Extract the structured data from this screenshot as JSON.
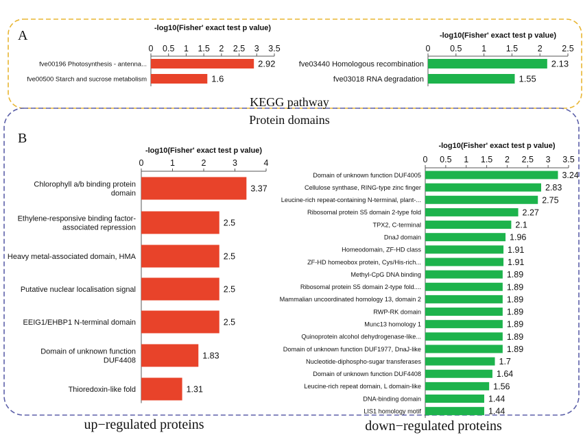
{
  "panel_a": {
    "letter": "A",
    "caption": "KEGG pathway",
    "border_color": "#E8B531"
  },
  "panel_b": {
    "letter": "B",
    "caption": "Protein domains",
    "border_color": "#5B5FA8"
  },
  "footer": {
    "left_caption": "up−regulated proteins",
    "right_caption": "down−regulated proteins"
  },
  "colors": {
    "up": "#E8432A",
    "down": "#1DB34C"
  },
  "chart_data": [
    {
      "id": "kegg-up",
      "type": "bar",
      "orientation": "horizontal",
      "title": "-log10(Fisher' exact test p value)",
      "xlim": [
        0,
        3.5
      ],
      "ticks": [
        "0",
        "0.5",
        "1",
        "1.5",
        "2",
        "2.5",
        "3",
        "3.5"
      ],
      "categories": [
        "fve00196 Photosynthesis - antenna...",
        "fve00500 Starch and sucrose metabolism"
      ],
      "values": [
        2.92,
        1.6
      ],
      "labels": [
        "2.92",
        "1.6"
      ]
    },
    {
      "id": "kegg-down",
      "type": "bar",
      "orientation": "horizontal",
      "title": "-log10(Fisher' exact test p value)",
      "xlim": [
        0,
        2.5
      ],
      "ticks": [
        "0",
        "0.5",
        "1",
        "1.5",
        "2",
        "2.5"
      ],
      "categories": [
        "fve03440 Homologous recombination",
        "fve03018 RNA degradation"
      ],
      "values": [
        2.13,
        1.55
      ],
      "labels": [
        "2.13",
        "1.55"
      ]
    },
    {
      "id": "domain-up",
      "type": "bar",
      "orientation": "horizontal",
      "title": "-log10(Fisher' exact test p value)",
      "xlim": [
        0,
        4
      ],
      "ticks": [
        "0",
        "1",
        "2",
        "3",
        "4"
      ],
      "categories": [
        [
          "Chlorophyll a/b binding protein",
          "domain"
        ],
        [
          "Ethylene-responsive binding factor-",
          "associated repression"
        ],
        [
          "Heavy metal-associated domain, HMA"
        ],
        [
          "Putative nuclear localisation signal"
        ],
        [
          "EEIG1/EHBP1 N-terminal domain"
        ],
        [
          "Domain of unknown function",
          "DUF4408"
        ],
        [
          "Thioredoxin-like fold"
        ]
      ],
      "values": [
        3.37,
        2.5,
        2.5,
        2.5,
        2.5,
        1.83,
        1.31
      ],
      "labels": [
        "3.37",
        "2.5",
        "2.5",
        "2.5",
        "2.5",
        "1.83",
        "1.31"
      ]
    },
    {
      "id": "domain-down",
      "type": "bar",
      "orientation": "horizontal",
      "title": "-log10(Fisher' exact test p value)",
      "xlim": [
        0,
        3.5
      ],
      "ticks": [
        "0",
        "0.5",
        "1",
        "1.5",
        "2",
        "2.5",
        "3",
        "3.5"
      ],
      "categories": [
        "Domain of unknown function DUF4005",
        "Cellulose synthase, RING-type zinc finger",
        "Leucine-rich repeat-containing N-terminal, plant-...",
        "Ribosomal protein S5 domain 2-type fold",
        "TPX2, C-terminal",
        "DnaJ domain",
        "Homeodomain, ZF-HD class",
        "ZF-HD homeobox protein, Cys/His-rich...",
        "Methyl-CpG DNA binding",
        "Ribosomal protein S5 domain 2-type fold....",
        "Mammalian uncoordinated homology 13, domain 2",
        "RWP-RK domain",
        "Munc13 homology 1",
        "Quinoprotein alcohol dehydrogenase-like...",
        "Domain of unknown function DUF1977, DnaJ-like",
        "Nucleotide-diphospho-sugar transferases",
        "Domain of unknown function DUF4408",
        "Leucine-rich repeat domain, L domain-like",
        "DNA-binding domain",
        "LIS1 homology motif"
      ],
      "values": [
        3.24,
        2.83,
        2.75,
        2.27,
        2.1,
        1.96,
        1.91,
        1.91,
        1.89,
        1.89,
        1.89,
        1.89,
        1.89,
        1.89,
        1.89,
        1.7,
        1.64,
        1.56,
        1.44,
        1.44
      ],
      "labels": [
        "3.24",
        "2.83",
        "2.75",
        "2.27",
        "2.1",
        "1.96",
        "1.91",
        "1.91",
        "1.89",
        "1.89",
        "1.89",
        "1.89",
        "1.89",
        "1.89",
        "1.89",
        "1.7",
        "1.64",
        "1.56",
        "1.44",
        "1.44"
      ]
    }
  ]
}
